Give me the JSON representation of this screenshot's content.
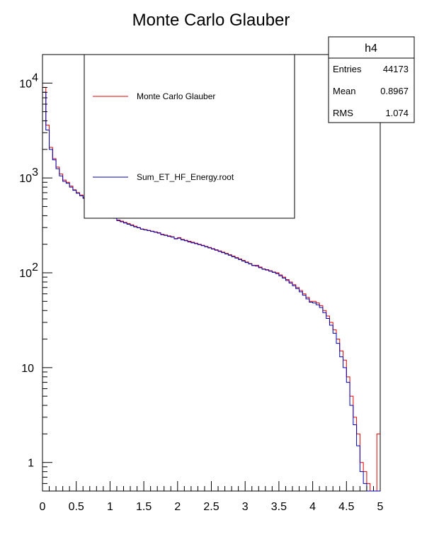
{
  "chart_data": {
    "type": "histogram",
    "title": "Monte Carlo Glauber",
    "xlabel": "",
    "ylabel": "",
    "xlim": [
      0,
      5
    ],
    "ylim": [
      0.5,
      20000
    ],
    "yscale": "log",
    "x_ticks": [
      "0",
      "0.5",
      "1",
      "1.5",
      "2",
      "2.5",
      "3",
      "3.5",
      "4",
      "4.5",
      "5"
    ],
    "y_ticks": [
      {
        "value": 1,
        "base": "1",
        "exp": ""
      },
      {
        "value": 10,
        "base": "10",
        "exp": ""
      },
      {
        "value": 100,
        "base": "10",
        "exp": "2"
      },
      {
        "value": 1000,
        "base": "10",
        "exp": "3"
      },
      {
        "value": 10000,
        "base": "10",
        "exp": "4"
      }
    ],
    "bin_width": 0.05,
    "series": [
      {
        "name": "Monte Carlo Glauber",
        "color": "#e00000",
        "values": [
          9000,
          3600,
          2100,
          1600,
          1300,
          1100,
          950,
          900,
          820,
          750,
          700,
          660,
          620,
          580,
          550,
          520,
          490,
          460,
          440,
          420,
          400,
          380,
          360,
          350,
          340,
          330,
          320,
          310,
          300,
          290,
          285,
          280,
          275,
          270,
          265,
          255,
          250,
          245,
          240,
          230,
          235,
          225,
          220,
          215,
          210,
          205,
          200,
          195,
          190,
          185,
          180,
          175,
          170,
          165,
          160,
          155,
          150,
          145,
          140,
          135,
          130,
          125,
          120,
          120,
          115,
          110,
          108,
          105,
          102,
          100,
          95,
          90,
          85,
          80,
          75,
          70,
          65,
          60,
          55,
          50,
          50,
          48,
          45,
          40,
          35,
          30,
          25,
          20,
          15,
          12,
          8,
          5,
          3,
          2,
          1,
          0.8,
          0.6,
          0.5,
          0.5,
          2
        ]
      },
      {
        "name": "Sum_ET_HF_Energy.root",
        "color": "#0000b0",
        "values": [
          8000,
          3200,
          2000,
          1550,
          1250,
          1050,
          920,
          880,
          800,
          740,
          690,
          650,
          610,
          570,
          545,
          515,
          485,
          455,
          435,
          415,
          395,
          375,
          355,
          345,
          335,
          325,
          315,
          305,
          298,
          288,
          283,
          278,
          273,
          268,
          262,
          252,
          248,
          242,
          238,
          228,
          232,
          222,
          218,
          212,
          207,
          203,
          198,
          193,
          188,
          183,
          178,
          173,
          168,
          163,
          158,
          153,
          148,
          143,
          138,
          133,
          128,
          124,
          119,
          118,
          113,
          109,
          107,
          104,
          101,
          98,
          93,
          88,
          83,
          78,
          73,
          68,
          63,
          58,
          53,
          49,
          48,
          46,
          43,
          38,
          33,
          28,
          23,
          18,
          13,
          10,
          7,
          4,
          2.5,
          1.5,
          0.8,
          0.6,
          0.5,
          0.5,
          0.5,
          0.5
        ]
      }
    ],
    "legend": {
      "position": "top-left",
      "entries": [
        {
          "label": "Monte Carlo Glauber",
          "color": "#e00000"
        },
        {
          "label": "Sum_ET_HF_Energy.root",
          "color": "#0000b0"
        }
      ]
    },
    "stats_box": {
      "title": "h4",
      "rows": [
        {
          "label": "Entries",
          "value": "44173"
        },
        {
          "label": "Mean",
          "value": "0.8967"
        },
        {
          "label": "RMS",
          "value": "1.074"
        }
      ]
    }
  }
}
